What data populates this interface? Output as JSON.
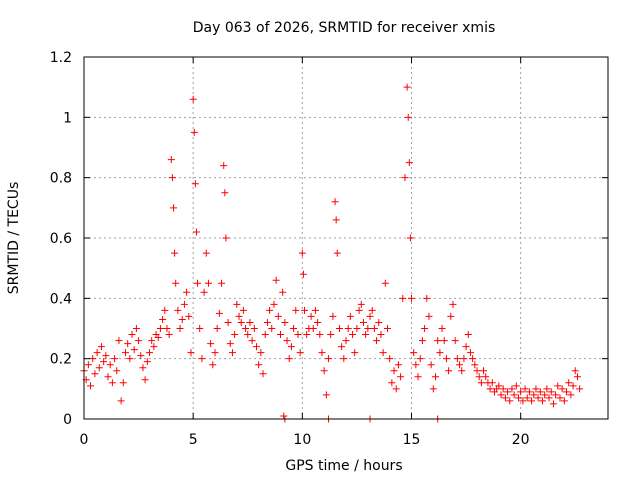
{
  "chart_data": {
    "type": "scatter",
    "title": "Day 063 of 2026, SRMTID for receiver xmis",
    "xlabel": "GPS time / hours",
    "ylabel": "SRMTID / TECUs",
    "xlim": [
      0,
      24
    ],
    "ylim": [
      0,
      1.2
    ],
    "xticks": [
      0,
      5,
      10,
      15,
      20
    ],
    "xtick_labels": [
      "0",
      "5",
      "10",
      "15",
      "20"
    ],
    "yticks": [
      0,
      0.2,
      0.4,
      0.6,
      0.8,
      1.0,
      1.2
    ],
    "ytick_labels": [
      "0",
      "0.2",
      "0.4",
      "0.6",
      "0.8",
      "1",
      "1.2"
    ],
    "grid": true,
    "marker": "+",
    "color": "#ff0000",
    "series": [
      {
        "name": "SRMTID",
        "points": [
          [
            0.0,
            0.16
          ],
          [
            0.1,
            0.13
          ],
          [
            0.2,
            0.18
          ],
          [
            0.3,
            0.11
          ],
          [
            0.4,
            0.2
          ],
          [
            0.5,
            0.15
          ],
          [
            0.6,
            0.22
          ],
          [
            0.7,
            0.17
          ],
          [
            0.8,
            0.24
          ],
          [
            0.9,
            0.19
          ],
          [
            1.0,
            0.21
          ],
          [
            1.1,
            0.14
          ],
          [
            1.2,
            0.18
          ],
          [
            1.3,
            0.12
          ],
          [
            1.4,
            0.2
          ],
          [
            1.5,
            0.16
          ],
          [
            1.6,
            0.26
          ],
          [
            1.7,
            0.06
          ],
          [
            1.8,
            0.12
          ],
          [
            1.9,
            0.22
          ],
          [
            2.0,
            0.25
          ],
          [
            2.1,
            0.2
          ],
          [
            2.2,
            0.28
          ],
          [
            2.3,
            0.23
          ],
          [
            2.4,
            0.3
          ],
          [
            2.5,
            0.26
          ],
          [
            2.6,
            0.21
          ],
          [
            2.7,
            0.17
          ],
          [
            2.8,
            0.13
          ],
          [
            2.9,
            0.19
          ],
          [
            3.0,
            0.22
          ],
          [
            3.1,
            0.26
          ],
          [
            3.2,
            0.24
          ],
          [
            3.3,
            0.28
          ],
          [
            3.4,
            0.27
          ],
          [
            3.5,
            0.3
          ],
          [
            3.6,
            0.33
          ],
          [
            3.7,
            0.36
          ],
          [
            3.8,
            0.3
          ],
          [
            3.9,
            0.28
          ],
          [
            4.0,
            0.86
          ],
          [
            4.05,
            0.8
          ],
          [
            4.1,
            0.7
          ],
          [
            4.15,
            0.55
          ],
          [
            4.2,
            0.45
          ],
          [
            4.3,
            0.36
          ],
          [
            4.4,
            0.3
          ],
          [
            4.5,
            0.33
          ],
          [
            4.6,
            0.38
          ],
          [
            4.7,
            0.42
          ],
          [
            4.8,
            0.34
          ],
          [
            4.9,
            0.22
          ],
          [
            5.0,
            1.06
          ],
          [
            5.05,
            0.95
          ],
          [
            5.1,
            0.78
          ],
          [
            5.15,
            0.62
          ],
          [
            5.2,
            0.45
          ],
          [
            5.3,
            0.3
          ],
          [
            5.4,
            0.2
          ],
          [
            5.5,
            0.42
          ],
          [
            5.6,
            0.55
          ],
          [
            5.7,
            0.45
          ],
          [
            5.8,
            0.25
          ],
          [
            5.9,
            0.18
          ],
          [
            6.0,
            0.22
          ],
          [
            6.1,
            0.3
          ],
          [
            6.2,
            0.35
          ],
          [
            6.3,
            0.45
          ],
          [
            6.4,
            0.84
          ],
          [
            6.45,
            0.75
          ],
          [
            6.5,
            0.6
          ],
          [
            6.6,
            0.32
          ],
          [
            6.7,
            0.25
          ],
          [
            6.8,
            0.22
          ],
          [
            6.9,
            0.28
          ],
          [
            7.0,
            0.38
          ],
          [
            7.1,
            0.34
          ],
          [
            7.2,
            0.32
          ],
          [
            7.3,
            0.36
          ],
          [
            7.4,
            0.3
          ],
          [
            7.5,
            0.28
          ],
          [
            7.6,
            0.32
          ],
          [
            7.7,
            0.26
          ],
          [
            7.8,
            0.3
          ],
          [
            7.9,
            0.24
          ],
          [
            8.0,
            0.18
          ],
          [
            8.1,
            0.22
          ],
          [
            8.2,
            0.15
          ],
          [
            8.3,
            0.28
          ],
          [
            8.4,
            0.32
          ],
          [
            8.5,
            0.36
          ],
          [
            8.6,
            0.3
          ],
          [
            8.7,
            0.38
          ],
          [
            8.8,
            0.46
          ],
          [
            8.9,
            0.34
          ],
          [
            9.0,
            0.28
          ],
          [
            9.1,
            0.42
          ],
          [
            9.15,
            0.01
          ],
          [
            9.2,
            0.32
          ],
          [
            9.3,
            0.26
          ],
          [
            9.4,
            0.2
          ],
          [
            9.5,
            0.24
          ],
          [
            9.6,
            0.3
          ],
          [
            9.7,
            0.36
          ],
          [
            9.8,
            0.28
          ],
          [
            9.9,
            0.22
          ],
          [
            10.0,
            0.55
          ],
          [
            10.05,
            0.48
          ],
          [
            10.1,
            0.36
          ],
          [
            10.2,
            0.28
          ],
          [
            10.3,
            0.3
          ],
          [
            10.4,
            0.34
          ],
          [
            10.5,
            0.3
          ],
          [
            10.6,
            0.36
          ],
          [
            10.7,
            0.32
          ],
          [
            10.8,
            0.28
          ],
          [
            10.9,
            0.22
          ],
          [
            11.0,
            0.16
          ],
          [
            11.1,
            0.08
          ],
          [
            11.2,
            0.2
          ],
          [
            11.3,
            0.28
          ],
          [
            11.4,
            0.34
          ],
          [
            11.5,
            0.72
          ],
          [
            11.55,
            0.66
          ],
          [
            11.6,
            0.55
          ],
          [
            11.7,
            0.3
          ],
          [
            11.8,
            0.24
          ],
          [
            11.9,
            0.2
          ],
          [
            12.0,
            0.26
          ],
          [
            12.1,
            0.3
          ],
          [
            12.2,
            0.34
          ],
          [
            12.3,
            0.28
          ],
          [
            12.4,
            0.22
          ],
          [
            12.5,
            0.3
          ],
          [
            12.6,
            0.36
          ],
          [
            12.7,
            0.38
          ],
          [
            12.8,
            0.32
          ],
          [
            12.9,
            0.28
          ],
          [
            13.0,
            0.3
          ],
          [
            13.1,
            0.34
          ],
          [
            13.2,
            0.36
          ],
          [
            13.3,
            0.3
          ],
          [
            13.4,
            0.26
          ],
          [
            13.5,
            0.32
          ],
          [
            13.6,
            0.28
          ],
          [
            13.7,
            0.22
          ],
          [
            13.8,
            0.45
          ],
          [
            13.9,
            0.3
          ],
          [
            14.0,
            0.2
          ],
          [
            14.1,
            0.12
          ],
          [
            14.2,
            0.16
          ],
          [
            14.3,
            0.1
          ],
          [
            14.4,
            0.18
          ],
          [
            14.5,
            0.14
          ],
          [
            14.6,
            0.4
          ],
          [
            14.7,
            0.8
          ],
          [
            14.8,
            1.1
          ],
          [
            14.85,
            1.0
          ],
          [
            14.9,
            0.85
          ],
          [
            14.95,
            0.6
          ],
          [
            15.0,
            0.4
          ],
          [
            15.1,
            0.22
          ],
          [
            15.2,
            0.18
          ],
          [
            15.3,
            0.14
          ],
          [
            15.4,
            0.2
          ],
          [
            15.5,
            0.26
          ],
          [
            15.6,
            0.3
          ],
          [
            15.7,
            0.4
          ],
          [
            15.8,
            0.34
          ],
          [
            15.9,
            0.18
          ],
          [
            16.0,
            0.1
          ],
          [
            16.1,
            0.14
          ],
          [
            16.2,
            0.26
          ],
          [
            16.3,
            0.22
          ],
          [
            16.4,
            0.3
          ],
          [
            16.5,
            0.26
          ],
          [
            16.6,
            0.2
          ],
          [
            16.7,
            0.16
          ],
          [
            16.8,
            0.34
          ],
          [
            16.9,
            0.38
          ],
          [
            17.0,
            0.26
          ],
          [
            17.1,
            0.2
          ],
          [
            17.2,
            0.18
          ],
          [
            17.3,
            0.16
          ],
          [
            17.4,
            0.2
          ],
          [
            17.5,
            0.24
          ],
          [
            17.6,
            0.28
          ],
          [
            17.7,
            0.22
          ],
          [
            17.8,
            0.2
          ],
          [
            17.9,
            0.18
          ],
          [
            18.0,
            0.16
          ],
          [
            18.1,
            0.14
          ],
          [
            18.2,
            0.12
          ],
          [
            18.3,
            0.16
          ],
          [
            18.4,
            0.14
          ],
          [
            18.5,
            0.12
          ],
          [
            18.6,
            0.1
          ],
          [
            18.7,
            0.12
          ],
          [
            18.8,
            0.09
          ],
          [
            18.9,
            0.1
          ],
          [
            19.0,
            0.11
          ],
          [
            19.1,
            0.08
          ],
          [
            19.2,
            0.1
          ],
          [
            19.3,
            0.07
          ],
          [
            19.4,
            0.09
          ],
          [
            19.5,
            0.06
          ],
          [
            19.6,
            0.1
          ],
          [
            19.7,
            0.08
          ],
          [
            19.8,
            0.11
          ],
          [
            19.9,
            0.07
          ],
          [
            20.0,
            0.09
          ],
          [
            20.1,
            0.06
          ],
          [
            20.2,
            0.1
          ],
          [
            20.3,
            0.07
          ],
          [
            20.4,
            0.09
          ],
          [
            20.5,
            0.06
          ],
          [
            20.6,
            0.08
          ],
          [
            20.7,
            0.1
          ],
          [
            20.8,
            0.07
          ],
          [
            20.9,
            0.09
          ],
          [
            21.0,
            0.06
          ],
          [
            21.1,
            0.08
          ],
          [
            21.2,
            0.1
          ],
          [
            21.3,
            0.07
          ],
          [
            21.4,
            0.09
          ],
          [
            21.5,
            0.05
          ],
          [
            21.6,
            0.08
          ],
          [
            21.7,
            0.11
          ],
          [
            21.8,
            0.07
          ],
          [
            21.9,
            0.1
          ],
          [
            22.0,
            0.06
          ],
          [
            22.1,
            0.09
          ],
          [
            22.2,
            0.12
          ],
          [
            22.3,
            0.08
          ],
          [
            22.4,
            0.11
          ],
          [
            22.5,
            0.16
          ],
          [
            22.6,
            0.14
          ],
          [
            22.7,
            0.1
          ],
          [
            9.2,
            0.0
          ],
          [
            11.2,
            0.0
          ],
          [
            13.1,
            0.0
          ],
          [
            16.2,
            0.0
          ]
        ]
      }
    ]
  }
}
